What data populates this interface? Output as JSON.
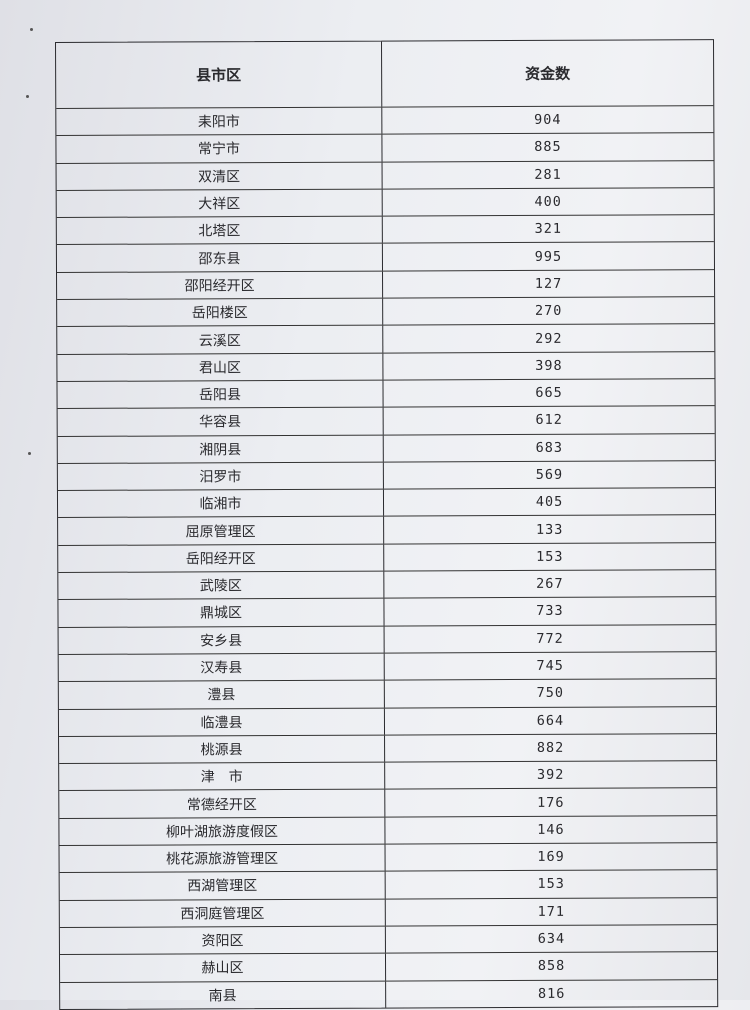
{
  "table": {
    "headers": [
      "县市区",
      "资金数"
    ],
    "rows": [
      [
        "耒阳市",
        "904"
      ],
      [
        "常宁市",
        "885"
      ],
      [
        "双清区",
        "281"
      ],
      [
        "大祥区",
        "400"
      ],
      [
        "北塔区",
        "321"
      ],
      [
        "邵东县",
        "995"
      ],
      [
        "邵阳经开区",
        "127"
      ],
      [
        "岳阳楼区",
        "270"
      ],
      [
        "云溪区",
        "292"
      ],
      [
        "君山区",
        "398"
      ],
      [
        "岳阳县",
        "665"
      ],
      [
        "华容县",
        "612"
      ],
      [
        "湘阴县",
        "683"
      ],
      [
        "汨罗市",
        "569"
      ],
      [
        "临湘市",
        "405"
      ],
      [
        "屈原管理区",
        "133"
      ],
      [
        "岳阳经开区",
        "153"
      ],
      [
        "武陵区",
        "267"
      ],
      [
        "鼎城区",
        "733"
      ],
      [
        "安乡县",
        "772"
      ],
      [
        "汉寿县",
        "745"
      ],
      [
        "澧县",
        "750"
      ],
      [
        "临澧县",
        "664"
      ],
      [
        "桃源县",
        "882"
      ],
      [
        "津　市",
        "392"
      ],
      [
        "常德经开区",
        "176"
      ],
      [
        "柳叶湖旅游度假区",
        "146"
      ],
      [
        "桃花源旅游管理区",
        "169"
      ],
      [
        "西湖管理区",
        "153"
      ],
      [
        "西洞庭管理区",
        "171"
      ],
      [
        "资阳区",
        "634"
      ],
      [
        "赫山区",
        "858"
      ],
      [
        "南县",
        "816"
      ]
    ]
  }
}
